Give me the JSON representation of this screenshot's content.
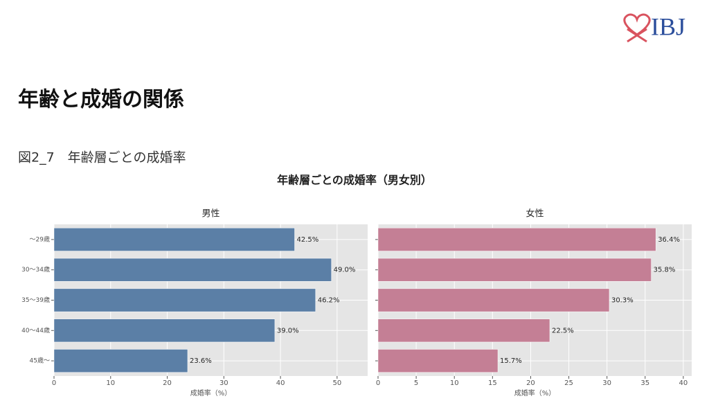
{
  "logo": "IBJ",
  "page_title": "年齢と成婚の関係",
  "figure_caption": "図2_7　年齢層ごとの成婚率",
  "suptitle": "年齢層ごとの成婚率（男女別）",
  "chart_data": [
    {
      "type": "barh",
      "title": "男性",
      "categories": [
        "～29歳",
        "30～34歳",
        "35～39歳",
        "40～44歳",
        "45歳～"
      ],
      "values": [
        42.5,
        49.0,
        46.2,
        39.0,
        23.6
      ],
      "value_labels": [
        "42.5%",
        "49.0%",
        "46.2%",
        "39.0%",
        "23.6%"
      ],
      "color": "#5b7fa6",
      "xlim": [
        0,
        55.4
      ],
      "xticks": [
        0,
        10,
        20,
        30,
        40,
        50
      ],
      "xlabel": "成婚率（%）",
      "grid": true
    },
    {
      "type": "barh",
      "title": "女性",
      "categories": [
        null,
        null,
        null,
        null,
        null
      ],
      "values": [
        36.4,
        35.8,
        30.3,
        22.5,
        15.7
      ],
      "value_labels": [
        "36.4%",
        "35.8%",
        "30.3%",
        "22.5%",
        "15.7%"
      ],
      "color": "#c47f95",
      "xlim": [
        0,
        41.1
      ],
      "xticks": [
        0,
        5,
        10,
        15,
        20,
        25,
        30,
        35,
        40
      ],
      "xlabel": "成婚率（%）",
      "grid": true
    }
  ]
}
